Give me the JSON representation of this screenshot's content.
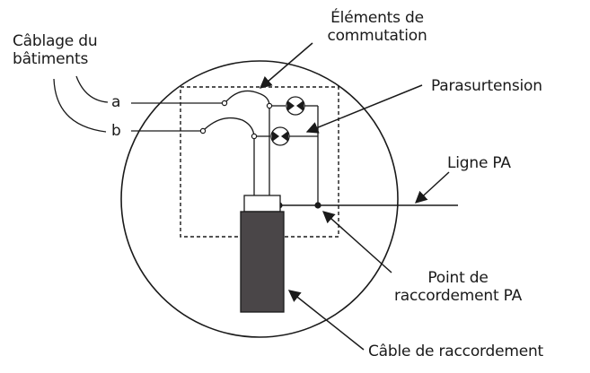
{
  "labels": {
    "switching_elements": "Éléments de\ncommutation",
    "building_wiring": "Câblage du\nbâtiments",
    "terminal_a": "a",
    "terminal_b": "b",
    "surge_protection": "Parasurtension",
    "pa_line": "Ligne PA",
    "pa_connection_point": "Point de\nraccordement PA",
    "connection_cable": "Câble de raccordement"
  },
  "colors": {
    "stroke": "#1a1a1a",
    "cable_fill": "#4a4648",
    "text": "#1a1a1a"
  }
}
